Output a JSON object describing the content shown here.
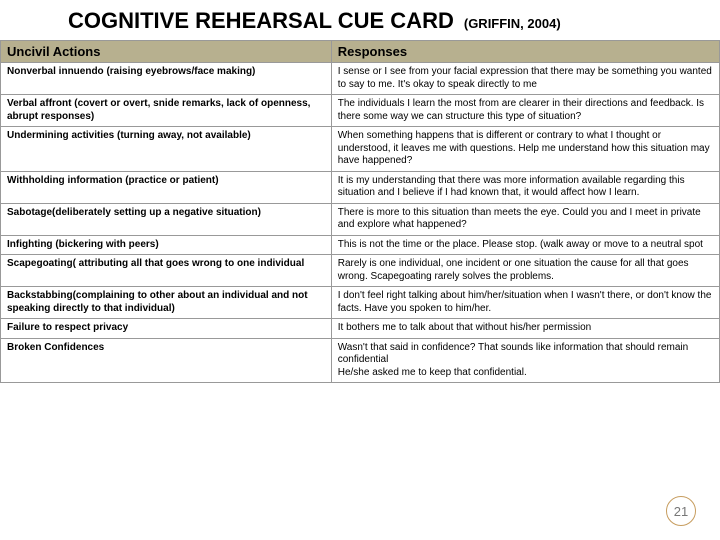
{
  "title": "COGNITIVE REHEARSAL CUE CARD",
  "citation": "(GRIFFIN, 2004)",
  "headers": {
    "left": "Uncivil Actions",
    "right": "Responses"
  },
  "rows": [
    {
      "action": "Nonverbal innuendo (raising eyebrows/face making)",
      "response": "I sense or I see from your facial expression that there may be something you wanted to say to me.  It's okay to speak directly to me"
    },
    {
      "action": "Verbal affront (covert or overt, snide remarks, lack of openness, abrupt responses)",
      "response": "The individuals I learn the most from are clearer in their directions and feedback.  Is there some way we can structure this type of situation?"
    },
    {
      "action": "Undermining activities (turning away, not available)",
      "response": "When something happens that is different or contrary to what I thought or understood, it leaves me with questions.  Help me understand how this situation may have happened?"
    },
    {
      "action": "Withholding information (practice or patient)",
      "response": "It is my understanding that there was more information available regarding this situation and I believe if I had known that, it would affect how I learn."
    },
    {
      "action": "Sabotage(deliberately setting up a negative situation)",
      "response": "There is more to this situation than meets the eye.  Could you and I meet in private and explore what happened?"
    },
    {
      "action": "Infighting (bickering with peers)",
      "response": "This is not the time or the place.  Please stop. (walk away or move to a neutral spot"
    },
    {
      "action": "Scapegoating( attributing all that goes wrong to one individual",
      "response": "Rarely is one individual, one incident or one situation the cause for all that goes wrong.  Scapegoating rarely solves the problems."
    },
    {
      "action": "Backstabbing(complaining to other about an individual and not speaking directly to that individual)",
      "response": "I don't feel right talking about him/her/situation when I wasn't there, or don't know the facts.  Have you spoken to him/her."
    },
    {
      "action": "Failure to respect privacy",
      "response": "It bothers me to talk about that without his/her permission"
    },
    {
      "action": "Broken Confidences",
      "response": "Wasn't that said in confidence?  That sounds like information that should remain confidential\nHe/she asked me to keep that confidential."
    }
  ],
  "pageNumber": "21",
  "style": {
    "header_bg": "#b7b08f",
    "border_color": "#999999",
    "title_fontsize": 22,
    "subtitle_fontsize": 13,
    "header_fontsize": 13,
    "cell_fontsize": 10,
    "page_circle_color": "#c79d5f"
  }
}
